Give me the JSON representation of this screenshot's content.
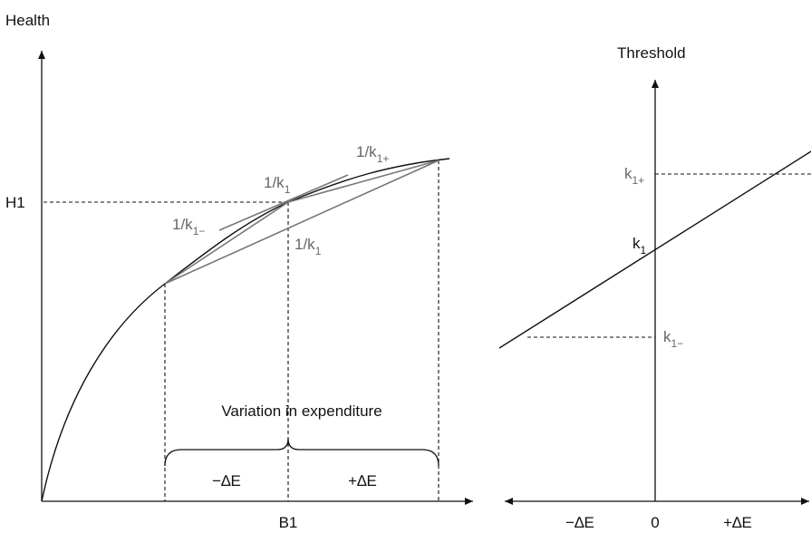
{
  "left": {
    "y_axis_label": "Health",
    "h_label": "H1",
    "b_label": "B1",
    "slope_plus": {
      "prefix": "1/k",
      "sub": "1+"
    },
    "slope_mid": {
      "prefix": "1/k",
      "sub": "1"
    },
    "slope_minus": {
      "prefix": "1/k",
      "sub": "1−"
    },
    "slope_chord": {
      "prefix": "1/k",
      "sub": "1"
    },
    "variation_label": "Variation in expenditure",
    "minus_de": "−∆E",
    "plus_de": "+∆E"
  },
  "right": {
    "y_axis_label": "Threshold",
    "k_plus": {
      "prefix": "k",
      "sub": "1+"
    },
    "k_mid": {
      "prefix": "k",
      "sub": "1"
    },
    "k_minus": {
      "prefix": "k",
      "sub": "1−"
    },
    "x_minus": "−∆E",
    "x_zero": "0",
    "x_plus": "+∆E"
  },
  "colors": {
    "axis": "#111111",
    "chord": "#777777",
    "grey_text": "#666666"
  }
}
